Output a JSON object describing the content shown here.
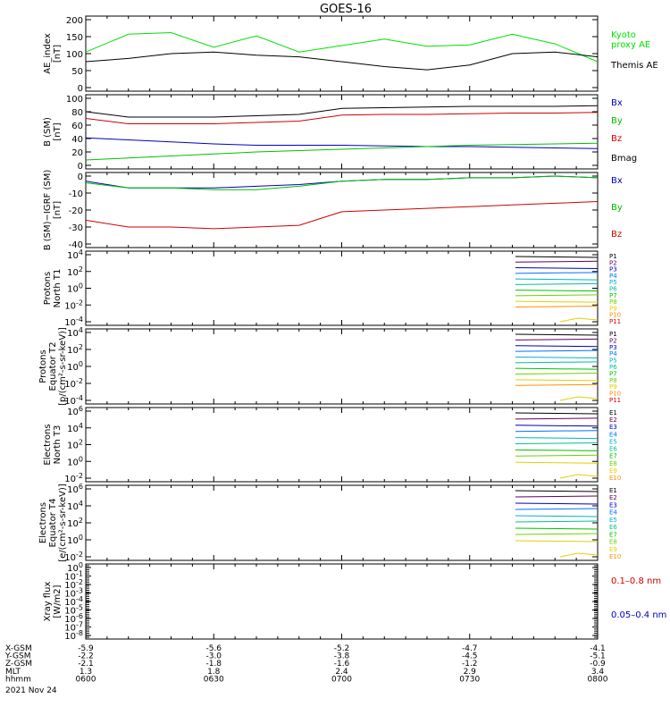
{
  "title": "GOES-16",
  "chart_data": [
    {
      "type": "line",
      "ylabel": [
        "AE_index",
        "[nT]"
      ],
      "yticks": [
        "200",
        "150",
        "100",
        "50",
        "0"
      ],
      "ylim": [
        0,
        210
      ],
      "x": [
        "06:00",
        "06:10",
        "06:20",
        "06:30",
        "06:40",
        "06:50",
        "07:00",
        "07:10",
        "07:20",
        "07:30",
        "07:40",
        "07:50",
        "08:00"
      ],
      "series": [
        {
          "name": "Kyoto\nproxy AE",
          "color": "#00e000",
          "values": [
            110,
            165,
            170,
            125,
            160,
            110,
            130,
            150,
            128,
            132,
            165,
            135,
            80
          ]
        },
        {
          "name": "Themis AE",
          "color": "#000000",
          "values": [
            80,
            90,
            105,
            110,
            100,
            95,
            80,
            65,
            55,
            70,
            105,
            110,
            95
          ]
        }
      ]
    },
    {
      "type": "line",
      "ylabel": [
        "B (SM)",
        "[nT]"
      ],
      "yticks": [
        "100",
        "80",
        "60",
        "40",
        "20",
        "0"
      ],
      "ylim": [
        0,
        100
      ],
      "series": [
        {
          "name": "Bx",
          "color": "#0000c0",
          "values": [
            41,
            38,
            35,
            32,
            30,
            30,
            30,
            29,
            28,
            28,
            27,
            26,
            25
          ]
        },
        {
          "name": "By",
          "color": "#00c000",
          "values": [
            8,
            11,
            14,
            17,
            20,
            22,
            24,
            26,
            28,
            30,
            31,
            32,
            33
          ]
        },
        {
          "name": "Bz",
          "color": "#d00000",
          "values": [
            70,
            62,
            62,
            62,
            64,
            66,
            75,
            76,
            76,
            77,
            78,
            78,
            79
          ]
        },
        {
          "name": "Bmag",
          "color": "#000000",
          "values": [
            80,
            72,
            72,
            72,
            74,
            76,
            85,
            86,
            87,
            88,
            88,
            88,
            89
          ]
        }
      ]
    },
    {
      "type": "line",
      "ylabel": [
        "B (SM)−IGRF (SM)",
        "[nT]"
      ],
      "yticks": [
        "0",
        "-10",
        "-20",
        "-30",
        "-40"
      ],
      "ylim": [
        -40,
        0
      ],
      "series": [
        {
          "name": "Bx",
          "color": "#0000c0",
          "values": [
            -3,
            -7,
            -7,
            -7,
            -6,
            -5,
            -3,
            -2,
            -2,
            -1,
            -1,
            0,
            -1
          ]
        },
        {
          "name": "By",
          "color": "#00c000",
          "values": [
            -4,
            -7,
            -7,
            -8,
            -8,
            -6,
            -3,
            -2,
            -2,
            -1,
            -1,
            0,
            -1
          ]
        },
        {
          "name": "Bz",
          "color": "#d00000",
          "values": [
            -26,
            -30,
            -30,
            -31,
            -30,
            -29,
            -21,
            -20,
            -19,
            -18,
            -17,
            -16,
            -15
          ]
        }
      ]
    },
    {
      "type": "line",
      "ylabel": [
        "Protons",
        "North T1"
      ],
      "yticks": [
        "10^4",
        "10^2",
        "10^0",
        "10^-2",
        "10^-4"
      ],
      "ylim": [
        -5,
        5
      ],
      "channels": [
        "P1",
        "P2",
        "P3",
        "P4",
        "P5",
        "P6",
        "P7",
        "P8",
        "P9",
        "P10",
        "P11"
      ]
    },
    {
      "type": "line",
      "ylabel": [
        "Protons",
        "Equator T2",
        "[p/(cm²-s-sr-keV)]"
      ],
      "yticks": [
        "10^4",
        "10^2",
        "10^0",
        "10^-2",
        "10^-4"
      ],
      "ylim": [
        -5,
        4
      ],
      "channels": [
        "P1",
        "P2",
        "P3",
        "P4",
        "P5",
        "P6",
        "P7",
        "P8",
        "P9",
        "P10",
        "P11"
      ]
    },
    {
      "type": "line",
      "ylabel": [
        "Electrons",
        "North T3"
      ],
      "yticks": [
        "10^6",
        "10^4",
        "10^2",
        "10^0",
        "10^-2"
      ],
      "ylim": [
        -3,
        6
      ],
      "channels": [
        "E1",
        "E2",
        "E3",
        "E4",
        "E5",
        "E6",
        "E7",
        "E8",
        "E9",
        "E10"
      ]
    },
    {
      "type": "line",
      "ylabel": [
        "Electrons",
        "Equator T4",
        "[e/(cm²-s-sr-keV)]"
      ],
      "yticks": [
        "10^6",
        "10^4",
        "10^2",
        "10^0",
        "10^-2"
      ],
      "ylim": [
        -3,
        6
      ],
      "channels": [
        "E1",
        "E2",
        "E3",
        "E4",
        "E5",
        "E6",
        "E7",
        "E8",
        "E9",
        "E10"
      ]
    },
    {
      "type": "line",
      "ylabel": [
        "Xray flux",
        "[W/m2]"
      ],
      "yticks": [
        "10^0",
        "10^-1",
        "10^-2",
        "10^-3",
        "10^-4",
        "10^-5",
        "10^-6",
        "10^-7",
        "10^-8"
      ],
      "ylim": [
        -8,
        0
      ],
      "series": [
        {
          "name": "0.1–0.8 nm",
          "color": "#d00000"
        },
        {
          "name": "0.05–0.4 nm",
          "color": "#0000c0"
        }
      ]
    }
  ],
  "footer": {
    "rows": [
      {
        "label": "X-GSM",
        "values": [
          "-5.9",
          "-5.6",
          "-5.2",
          "-4.7",
          "-4.1"
        ]
      },
      {
        "label": "Y-GSM",
        "values": [
          "-2.2",
          "-3.0",
          "-3.8",
          "-4.5",
          "-5.1"
        ]
      },
      {
        "label": "Z-GSM",
        "values": [
          "-2.1",
          "-1.8",
          "-1.6",
          "-1.2",
          "-0.9"
        ]
      },
      {
        "label": "MLT",
        "values": [
          "1.3",
          "1.8",
          "2.4",
          "2.9",
          "3.4"
        ]
      },
      {
        "label": "hhmm",
        "values": [
          "0600",
          "0630",
          "0700",
          "0730",
          "0800"
        ]
      }
    ],
    "date": "2021 Nov 24"
  },
  "channel_colors": [
    "#000000",
    "#600060",
    "#0000c0",
    "#0070ff",
    "#00b0d0",
    "#00c090",
    "#00c000",
    "#70d000",
    "#e0d000",
    "#ff9000",
    "#d00000",
    "#ff0000"
  ]
}
